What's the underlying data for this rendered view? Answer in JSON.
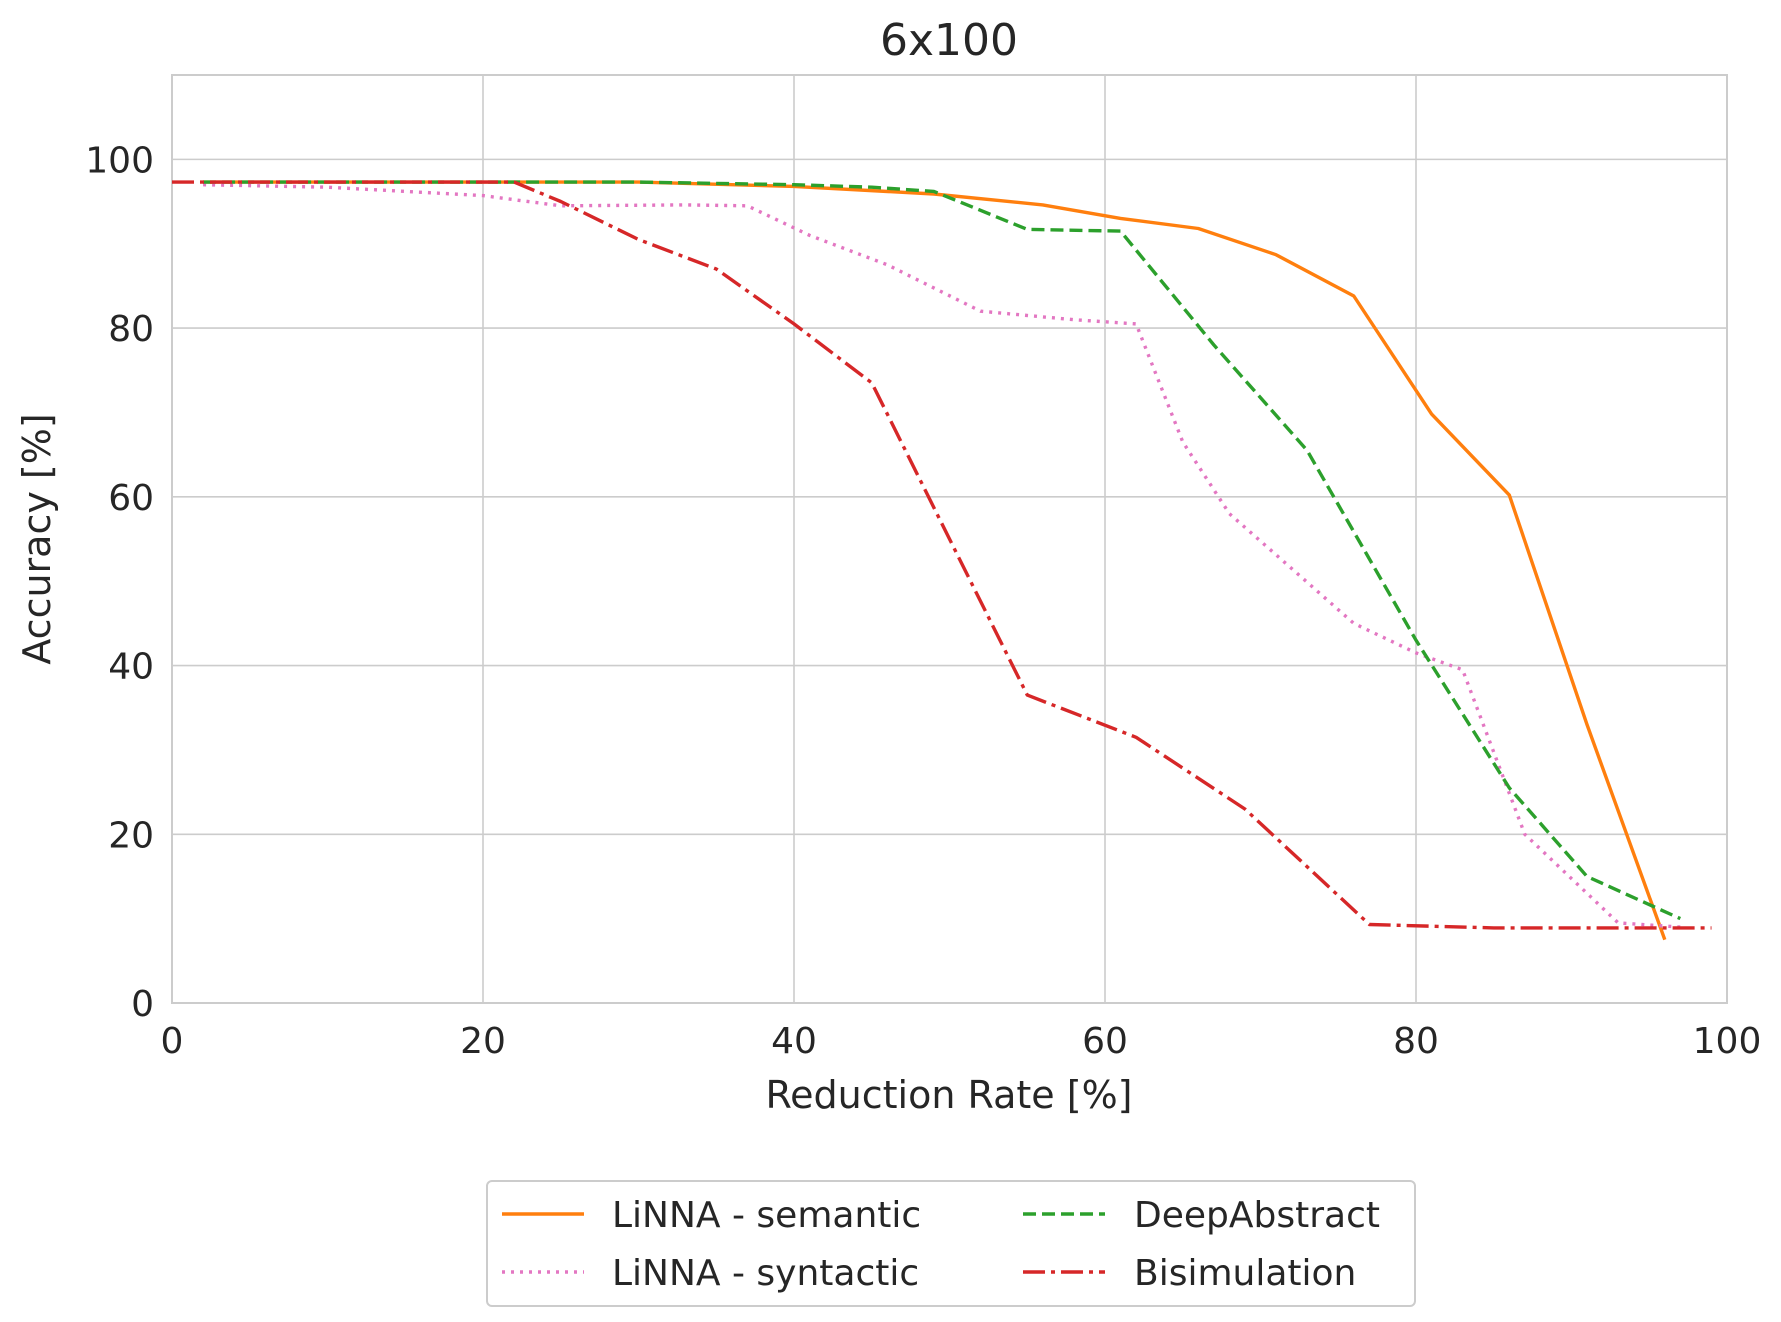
{
  "chart_data": {
    "type": "line",
    "title": "6x100",
    "xlabel": "Reduction Rate [%]",
    "ylabel": "Accuracy [%]",
    "xlim": [
      0,
      100
    ],
    "ylim": [
      0,
      110
    ],
    "xticks": [
      0,
      20,
      40,
      60,
      80,
      100
    ],
    "yticks": [
      0,
      20,
      40,
      60,
      80,
      100
    ],
    "grid": true,
    "legend_position": "bottom-center, below plot, 2 columns",
    "series": [
      {
        "name": "LiNNA - semantic",
        "color": "#ff7f0e",
        "dash": "solid",
        "points": [
          [
            2,
            97.3
          ],
          [
            10,
            97.3
          ],
          [
            20,
            97.3
          ],
          [
            30,
            97.3
          ],
          [
            40,
            96.8
          ],
          [
            49,
            95.9
          ],
          [
            56,
            94.6
          ],
          [
            61,
            93.0
          ],
          [
            66,
            91.8
          ],
          [
            71,
            88.7
          ],
          [
            76,
            83.8
          ],
          [
            81,
            69.8
          ],
          [
            86,
            60.2
          ],
          [
            91,
            33.0
          ],
          [
            96,
            7.5
          ]
        ]
      },
      {
        "name": "LiNNA - syntactic",
        "color": "#e377c2",
        "dash": "dotted",
        "points": [
          [
            2,
            97.0
          ],
          [
            10,
            96.7
          ],
          [
            20,
            95.7
          ],
          [
            25,
            94.5
          ],
          [
            33,
            94.6
          ],
          [
            37,
            94.5
          ],
          [
            41,
            91.0
          ],
          [
            46,
            87.5
          ],
          [
            52,
            82.0
          ],
          [
            58,
            81.0
          ],
          [
            62,
            80.5
          ],
          [
            65,
            66.5
          ],
          [
            68,
            58.0
          ],
          [
            72,
            51.5
          ],
          [
            76,
            45.0
          ],
          [
            80,
            41.5
          ],
          [
            83,
            39.5
          ],
          [
            87,
            20.0
          ],
          [
            93,
            9.5
          ],
          [
            97,
            9.0
          ]
        ]
      },
      {
        "name": "DeepAbstract",
        "color": "#2ca02c",
        "dash": "dashed",
        "points": [
          [
            2,
            97.3
          ],
          [
            10,
            97.3
          ],
          [
            20,
            97.3
          ],
          [
            30,
            97.3
          ],
          [
            40,
            97.0
          ],
          [
            45,
            96.7
          ],
          [
            49,
            96.2
          ],
          [
            55,
            91.7
          ],
          [
            61,
            91.5
          ],
          [
            67,
            78.0
          ],
          [
            73,
            65.5
          ],
          [
            80,
            43.0
          ],
          [
            86,
            25.5
          ],
          [
            91,
            15.0
          ],
          [
            97,
            10.0
          ]
        ]
      },
      {
        "name": "Bisimulation",
        "color": "#d62728",
        "dash": "dashdot",
        "points": [
          [
            0,
            97.3
          ],
          [
            10,
            97.3
          ],
          [
            22,
            97.3
          ],
          [
            25,
            95.0
          ],
          [
            30,
            90.5
          ],
          [
            35,
            87.0
          ],
          [
            40,
            80.5
          ],
          [
            45,
            73.5
          ],
          [
            50,
            55.0
          ],
          [
            55,
            36.5
          ],
          [
            62,
            31.5
          ],
          [
            69,
            23.0
          ],
          [
            77,
            9.3
          ],
          [
            85,
            8.9
          ],
          [
            92,
            8.9
          ],
          [
            99,
            8.9
          ]
        ]
      }
    ]
  }
}
